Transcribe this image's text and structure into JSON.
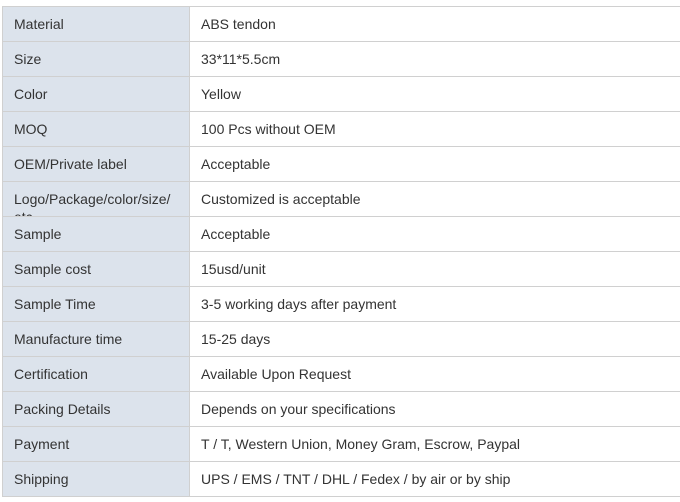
{
  "spec_table": {
    "rows": [
      {
        "label": "Material",
        "value": "ABS tendon"
      },
      {
        "label": "Size",
        "value": "33*11*5.5cm"
      },
      {
        "label": "Color",
        "value": "Yellow"
      },
      {
        "label": "MOQ",
        "value": "100 Pcs without OEM"
      },
      {
        "label": "OEM/Private label",
        "value": "Acceptable"
      },
      {
        "label": "Logo/Package/color/size/ etc.",
        "value": "Customized is acceptable"
      },
      {
        "label": "Sample",
        "value": "Acceptable"
      },
      {
        "label": "Sample cost",
        "value": "15usd/unit"
      },
      {
        "label": "Sample Time",
        "value": "3-5 working days after payment"
      },
      {
        "label": "Manufacture time",
        "value": "15-25 days"
      },
      {
        "label": "Certification",
        "value": "Available Upon Request"
      },
      {
        "label": "Packing Details",
        "value": "Depends on your specifications"
      },
      {
        "label": "Payment",
        "value": "T / T, Western Union, Money Gram, Escrow, Paypal"
      },
      {
        "label": "Shipping",
        "value": "UPS / EMS / TNT / DHL / Fedex / by air or by ship"
      }
    ]
  }
}
